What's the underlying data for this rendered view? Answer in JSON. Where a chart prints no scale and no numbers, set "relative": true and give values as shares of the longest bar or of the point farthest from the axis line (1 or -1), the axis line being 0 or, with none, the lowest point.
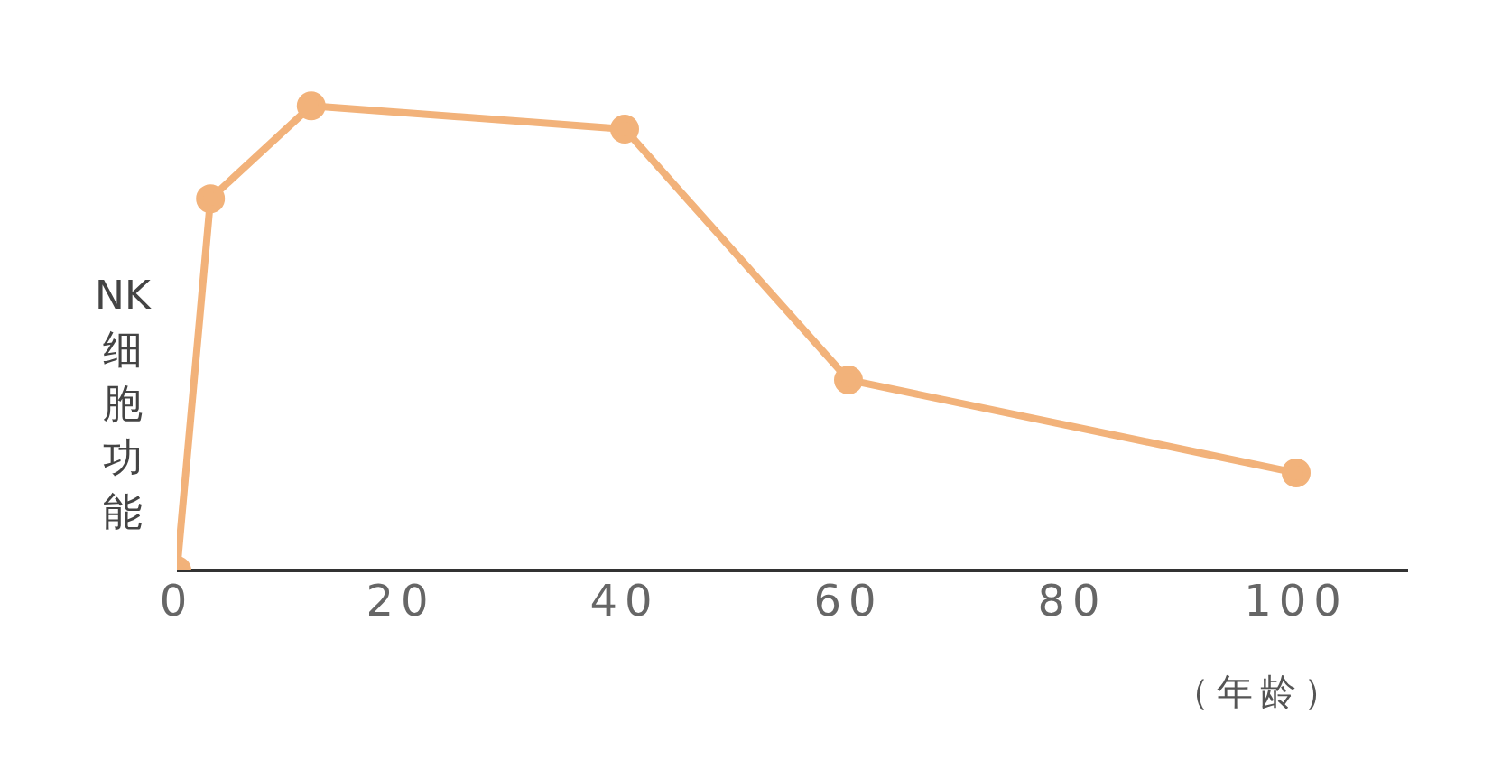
{
  "chart_data": {
    "type": "line",
    "ylabel": "NK细胞功能",
    "xlabel": "（年龄）",
    "relative": true,
    "x": [
      0,
      3,
      12,
      40,
      60,
      100
    ],
    "series": [
      {
        "color": "#f2b27a",
        "values": [
          0,
          0.8,
          1,
          0.95,
          0.41,
          0.21
        ]
      }
    ],
    "xlim": [
      0,
      110
    ],
    "xticks": [
      0,
      20,
      40,
      60,
      80,
      100
    ],
    "marker": "circle",
    "grid": false,
    "legend": false
  }
}
